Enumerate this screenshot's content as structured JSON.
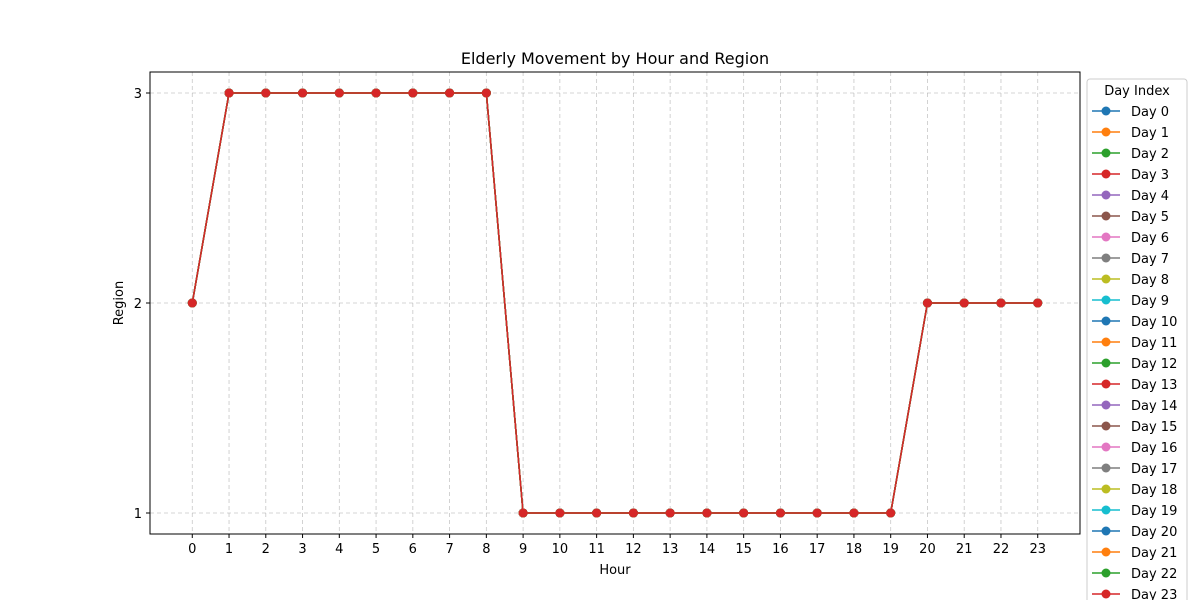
{
  "chart_data": {
    "type": "line",
    "title": "Elderly Movement by Hour and Region",
    "xlabel": "Hour",
    "ylabel": "Region",
    "x": [
      0,
      1,
      2,
      3,
      4,
      5,
      6,
      7,
      8,
      9,
      10,
      11,
      12,
      13,
      14,
      15,
      16,
      17,
      18,
      19,
      20,
      21,
      22,
      23
    ],
    "x_ticks": [
      "0",
      "1",
      "2",
      "3",
      "4",
      "5",
      "6",
      "7",
      "8",
      "9",
      "10",
      "11",
      "12",
      "13",
      "14",
      "15",
      "16",
      "17",
      "18",
      "19",
      "20",
      "21",
      "22",
      "23"
    ],
    "y_ticks": [
      "1",
      "2",
      "3"
    ],
    "xlim": [
      -1.15,
      24.15
    ],
    "ylim": [
      0.9,
      3.1
    ],
    "grid": true,
    "legend": {
      "title": "Day Index",
      "placement": "right"
    },
    "series_values": [
      2,
      3,
      3,
      3,
      3,
      3,
      3,
      3,
      3,
      1,
      1,
      1,
      1,
      1,
      1,
      1,
      1,
      1,
      1,
      1,
      2,
      2,
      2,
      2
    ],
    "series": [
      {
        "name": "Day 0",
        "color": "#1f77b4"
      },
      {
        "name": "Day 1",
        "color": "#ff7f0e"
      },
      {
        "name": "Day 2",
        "color": "#2ca02c"
      },
      {
        "name": "Day 3",
        "color": "#d62728"
      },
      {
        "name": "Day 4",
        "color": "#9467bd"
      },
      {
        "name": "Day 5",
        "color": "#8c564b"
      },
      {
        "name": "Day 6",
        "color": "#e377c2"
      },
      {
        "name": "Day 7",
        "color": "#7f7f7f"
      },
      {
        "name": "Day 8",
        "color": "#bcbd22"
      },
      {
        "name": "Day 9",
        "color": "#17becf"
      },
      {
        "name": "Day 10",
        "color": "#1f77b4"
      },
      {
        "name": "Day 11",
        "color": "#ff7f0e"
      },
      {
        "name": "Day 12",
        "color": "#2ca02c"
      },
      {
        "name": "Day 13",
        "color": "#d62728"
      },
      {
        "name": "Day 14",
        "color": "#9467bd"
      },
      {
        "name": "Day 15",
        "color": "#8c564b"
      },
      {
        "name": "Day 16",
        "color": "#e377c2"
      },
      {
        "name": "Day 17",
        "color": "#7f7f7f"
      },
      {
        "name": "Day 18",
        "color": "#bcbd22"
      },
      {
        "name": "Day 19",
        "color": "#17becf"
      },
      {
        "name": "Day 20",
        "color": "#1f77b4"
      },
      {
        "name": "Day 21",
        "color": "#ff7f0e"
      },
      {
        "name": "Day 22",
        "color": "#2ca02c"
      },
      {
        "name": "Day 23",
        "color": "#d62728"
      }
    ]
  }
}
